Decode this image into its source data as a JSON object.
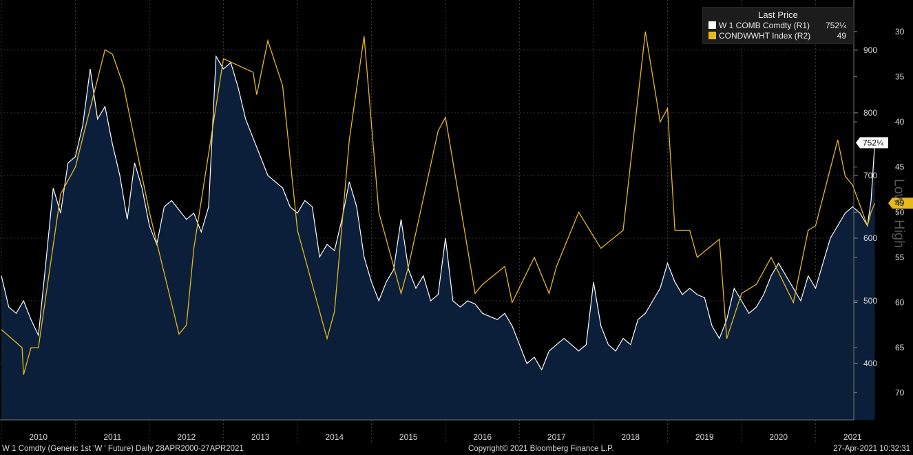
{
  "legend": {
    "header": "Last Price",
    "items": [
      {
        "name": "W 1 COMB Comdty  (R1)",
        "value": "752¼",
        "color": "#ffffff"
      },
      {
        "name": "CONDWWHT Index  (R2)",
        "value": "49",
        "color": "#e8b91a"
      }
    ]
  },
  "footer": {
    "left": "W 1 Comdty (Generic 1st 'W ' Future)  Daily 28APR2000-27APR2021",
    "center": "Copyright© 2021 Bloomberg Finance L.P.",
    "right": "27-Apr-2021 10:32:31"
  },
  "axis_r2_title": "Low = High",
  "colors": {
    "background": "#000000",
    "area": "#0b1f3a",
    "price_line": "#ffffff",
    "index_line": "#e8b91a"
  },
  "chart_data": {
    "type": "line",
    "x_labels": [
      "2010",
      "2011",
      "2012",
      "2013",
      "2014",
      "2015",
      "2016",
      "2017",
      "2018",
      "2019",
      "2020",
      "2021"
    ],
    "axis_r1": {
      "label": "",
      "ticks": [
        400,
        500,
        600,
        700,
        800,
        900
      ],
      "range": [
        310,
        980
      ]
    },
    "axis_r2": {
      "label": "Low = High",
      "inverted": true,
      "ticks": [
        30,
        35,
        40,
        45,
        50,
        55,
        60,
        65,
        70
      ],
      "range": [
        26.5,
        73
      ]
    },
    "series": [
      {
        "name": "W 1 COMB Comdty  (R1)",
        "axis": "R1",
        "style": "area",
        "last_value": "752¼",
        "points": [
          [
            2009.5,
            540
          ],
          [
            2009.6,
            490
          ],
          [
            2009.7,
            480
          ],
          [
            2009.8,
            500
          ],
          [
            2009.9,
            470
          ],
          [
            2010.0,
            445
          ],
          [
            2010.1,
            560
          ],
          [
            2010.2,
            680
          ],
          [
            2010.3,
            640
          ],
          [
            2010.4,
            720
          ],
          [
            2010.5,
            730
          ],
          [
            2010.6,
            780
          ],
          [
            2010.7,
            870
          ],
          [
            2010.8,
            790
          ],
          [
            2010.9,
            810
          ],
          [
            2011.0,
            750
          ],
          [
            2011.1,
            700
          ],
          [
            2011.2,
            630
          ],
          [
            2011.3,
            720
          ],
          [
            2011.4,
            680
          ],
          [
            2011.5,
            620
          ],
          [
            2011.6,
            590
          ],
          [
            2011.7,
            650
          ],
          [
            2011.8,
            660
          ],
          [
            2012.0,
            630
          ],
          [
            2012.1,
            640
          ],
          [
            2012.2,
            610
          ],
          [
            2012.3,
            650
          ],
          [
            2012.4,
            890
          ],
          [
            2012.5,
            870
          ],
          [
            2012.6,
            880
          ],
          [
            2012.7,
            840
          ],
          [
            2012.8,
            790
          ],
          [
            2012.9,
            760
          ],
          [
            2013.0,
            730
          ],
          [
            2013.1,
            700
          ],
          [
            2013.2,
            690
          ],
          [
            2013.3,
            680
          ],
          [
            2013.4,
            650
          ],
          [
            2013.5,
            640
          ],
          [
            2013.6,
            660
          ],
          [
            2013.7,
            650
          ],
          [
            2013.8,
            570
          ],
          [
            2013.9,
            590
          ],
          [
            2014.0,
            580
          ],
          [
            2014.1,
            630
          ],
          [
            2014.2,
            690
          ],
          [
            2014.3,
            650
          ],
          [
            2014.4,
            570
          ],
          [
            2014.5,
            530
          ],
          [
            2014.6,
            500
          ],
          [
            2014.7,
            530
          ],
          [
            2014.8,
            550
          ],
          [
            2014.9,
            630
          ],
          [
            2015.0,
            550
          ],
          [
            2015.1,
            520
          ],
          [
            2015.2,
            540
          ],
          [
            2015.3,
            500
          ],
          [
            2015.4,
            510
          ],
          [
            2015.5,
            600
          ],
          [
            2015.6,
            500
          ],
          [
            2015.7,
            490
          ],
          [
            2015.8,
            500
          ],
          [
            2015.9,
            495
          ],
          [
            2016.0,
            480
          ],
          [
            2016.1,
            475
          ],
          [
            2016.2,
            470
          ],
          [
            2016.3,
            480
          ],
          [
            2016.4,
            460
          ],
          [
            2016.5,
            430
          ],
          [
            2016.6,
            400
          ],
          [
            2016.7,
            410
          ],
          [
            2016.8,
            390
          ],
          [
            2016.9,
            420
          ],
          [
            2017.0,
            430
          ],
          [
            2017.1,
            440
          ],
          [
            2017.2,
            430
          ],
          [
            2017.3,
            420
          ],
          [
            2017.4,
            430
          ],
          [
            2017.5,
            530
          ],
          [
            2017.6,
            460
          ],
          [
            2017.7,
            430
          ],
          [
            2017.8,
            420
          ],
          [
            2017.9,
            440
          ],
          [
            2018.0,
            430
          ],
          [
            2018.1,
            470
          ],
          [
            2018.2,
            480
          ],
          [
            2018.3,
            500
          ],
          [
            2018.4,
            520
          ],
          [
            2018.5,
            560
          ],
          [
            2018.6,
            530
          ],
          [
            2018.7,
            510
          ],
          [
            2018.8,
            520
          ],
          [
            2018.9,
            510
          ],
          [
            2019.0,
            505
          ],
          [
            2019.1,
            460
          ],
          [
            2019.2,
            440
          ],
          [
            2019.3,
            470
          ],
          [
            2019.4,
            520
          ],
          [
            2019.5,
            500
          ],
          [
            2019.6,
            480
          ],
          [
            2019.7,
            490
          ],
          [
            2019.8,
            510
          ],
          [
            2019.9,
            540
          ],
          [
            2020.0,
            560
          ],
          [
            2020.1,
            540
          ],
          [
            2020.2,
            520
          ],
          [
            2020.3,
            500
          ],
          [
            2020.4,
            540
          ],
          [
            2020.5,
            520
          ],
          [
            2020.6,
            560
          ],
          [
            2020.7,
            600
          ],
          [
            2020.8,
            620
          ],
          [
            2020.9,
            640
          ],
          [
            2021.0,
            650
          ],
          [
            2021.1,
            640
          ],
          [
            2021.2,
            620
          ],
          [
            2021.25,
            660
          ],
          [
            2021.3,
            752.25
          ]
        ]
      },
      {
        "name": "CONDWWHT Index  (R2)",
        "axis": "R2",
        "style": "line",
        "last_value": "49",
        "points": [
          [
            2009.5,
            63
          ],
          [
            2009.78,
            65
          ],
          [
            2009.8,
            68
          ],
          [
            2009.9,
            65
          ],
          [
            2010.0,
            65
          ],
          [
            2010.3,
            48
          ],
          [
            2010.5,
            45
          ],
          [
            2010.9,
            32
          ],
          [
            2011.0,
            32.5
          ],
          [
            2011.15,
            36
          ],
          [
            2011.5,
            50
          ],
          [
            2011.9,
            63.5
          ],
          [
            2012.0,
            62.5
          ],
          [
            2012.1,
            54
          ],
          [
            2012.5,
            33
          ],
          [
            2012.9,
            34.5
          ],
          [
            2012.95,
            37
          ],
          [
            2013.1,
            31
          ],
          [
            2013.3,
            36
          ],
          [
            2013.5,
            52
          ],
          [
            2013.9,
            64
          ],
          [
            2014.0,
            61
          ],
          [
            2014.2,
            42
          ],
          [
            2014.4,
            30.5
          ],
          [
            2014.6,
            50
          ],
          [
            2014.9,
            59
          ],
          [
            2015.0,
            56
          ],
          [
            2015.4,
            41
          ],
          [
            2015.5,
            39.5
          ],
          [
            2015.9,
            59
          ],
          [
            2016.0,
            58
          ],
          [
            2016.3,
            56
          ],
          [
            2016.4,
            60
          ],
          [
            2016.7,
            55
          ],
          [
            2016.9,
            59
          ],
          [
            2017.0,
            56
          ],
          [
            2017.3,
            50
          ],
          [
            2017.6,
            54
          ],
          [
            2017.9,
            52
          ],
          [
            2018.2,
            30
          ],
          [
            2018.4,
            40
          ],
          [
            2018.5,
            38.5
          ],
          [
            2018.6,
            52
          ],
          [
            2018.8,
            52
          ],
          [
            2018.9,
            55
          ],
          [
            2019.2,
            53
          ],
          [
            2019.3,
            64
          ],
          [
            2019.5,
            59
          ],
          [
            2019.7,
            58
          ],
          [
            2019.9,
            55
          ],
          [
            2020.2,
            60
          ],
          [
            2020.4,
            52
          ],
          [
            2020.5,
            51.5
          ],
          [
            2020.8,
            42
          ],
          [
            2020.9,
            46
          ],
          [
            2021.0,
            47
          ],
          [
            2021.2,
            51.5
          ],
          [
            2021.25,
            50
          ],
          [
            2021.3,
            49
          ]
        ]
      }
    ]
  }
}
